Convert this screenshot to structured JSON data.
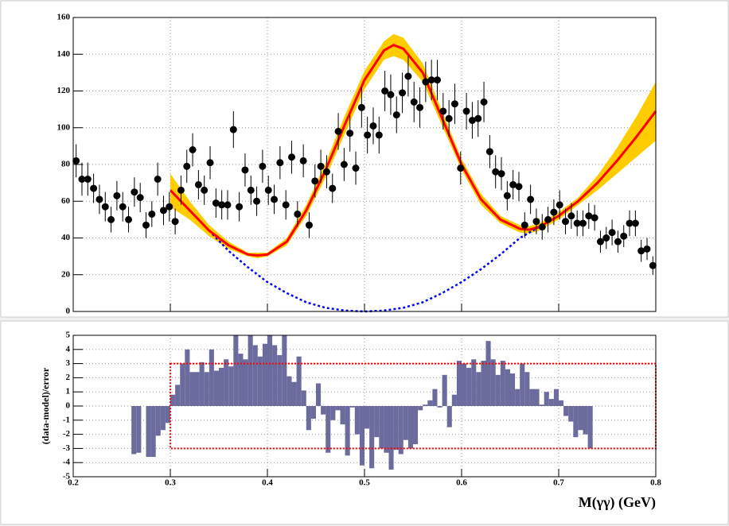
{
  "chart_data": [
    {
      "type": "scatter",
      "x": [
        0.203,
        0.209,
        0.215,
        0.221,
        0.227,
        0.233,
        0.239,
        0.245,
        0.251,
        0.257,
        0.263,
        0.269,
        0.275,
        0.281,
        0.287,
        0.293,
        0.299,
        0.305,
        0.311,
        0.317,
        0.323,
        0.329,
        0.335,
        0.341,
        0.347,
        0.353,
        0.359,
        0.365,
        0.371,
        0.377,
        0.383,
        0.389,
        0.395,
        0.401,
        0.407,
        0.413,
        0.419,
        0.425,
        0.431,
        0.437,
        0.443,
        0.449,
        0.455,
        0.461,
        0.467,
        0.473,
        0.479,
        0.485,
        0.491,
        0.497,
        0.503,
        0.509,
        0.515,
        0.521,
        0.527,
        0.533,
        0.539,
        0.545,
        0.551,
        0.557,
        0.563,
        0.569,
        0.575,
        0.581,
        0.587,
        0.593,
        0.599,
        0.605,
        0.611,
        0.617,
        0.623,
        0.629,
        0.635,
        0.641,
        0.647,
        0.653,
        0.659,
        0.665,
        0.671,
        0.677,
        0.683,
        0.689,
        0.695,
        0.701,
        0.707,
        0.713,
        0.719,
        0.725,
        0.731,
        0.737,
        0.743,
        0.749,
        0.755,
        0.761,
        0.767,
        0.773,
        0.779,
        0.785,
        0.791,
        0.797
      ],
      "values": [
        82,
        72,
        72,
        67,
        61,
        57,
        50,
        63,
        57,
        50,
        65,
        62,
        47,
        53,
        72,
        55,
        57,
        49,
        66,
        79,
        88,
        69,
        66,
        81,
        59,
        58,
        58,
        99,
        57,
        77,
        66,
        60,
        79,
        66,
        61,
        81,
        58,
        84,
        53,
        82,
        47,
        71,
        79,
        76,
        67,
        98,
        80,
        97,
        78,
        111,
        96,
        101,
        96,
        120,
        118,
        107,
        119,
        128,
        114,
        111,
        125,
        126,
        126,
        109,
        105,
        113,
        78,
        109,
        104,
        105,
        114,
        87,
        76,
        75,
        63,
        69,
        68,
        47,
        61,
        49,
        46,
        50,
        54,
        58,
        49,
        52,
        48,
        48,
        52,
        51,
        38,
        40,
        43,
        38,
        41,
        48,
        48,
        33,
        34,
        25
      ],
      "errors": [
        9,
        9,
        9,
        8,
        8,
        8,
        7,
        8,
        8,
        7,
        8,
        8,
        7,
        7,
        9,
        8,
        8,
        7,
        8,
        9,
        9,
        8,
        8,
        9,
        8,
        8,
        8,
        10,
        8,
        9,
        8,
        8,
        9,
        8,
        8,
        9,
        8,
        9,
        7,
        9,
        7,
        9,
        9,
        9,
        8,
        10,
        9,
        10,
        9,
        11,
        10,
        10,
        10,
        11,
        11,
        10,
        11,
        11,
        11,
        11,
        11,
        11,
        11,
        10,
        10,
        11,
        9,
        10,
        10,
        10,
        11,
        9,
        9,
        9,
        8,
        8,
        8,
        7,
        8,
        7,
        7,
        7,
        7,
        8,
        7,
        7,
        7,
        7,
        7,
        7,
        6,
        6,
        7,
        6,
        6,
        7,
        7,
        6,
        6,
        5
      ],
      "color": "#000000",
      "fit": {
        "color": "#ff0000",
        "band_color": "#ffcc00",
        "x": [
          0.3,
          0.32,
          0.34,
          0.36,
          0.38,
          0.39,
          0.4,
          0.42,
          0.44,
          0.46,
          0.48,
          0.5,
          0.52,
          0.53,
          0.54,
          0.56,
          0.58,
          0.6,
          0.62,
          0.64,
          0.66,
          0.67,
          0.68,
          0.7,
          0.72,
          0.74,
          0.76,
          0.78,
          0.8
        ],
        "values": [
          66,
          55,
          44,
          36,
          31,
          30.5,
          31,
          38,
          55,
          77,
          102,
          126,
          142,
          145,
          143,
          130,
          105,
          80,
          61,
          50,
          45,
          44.5,
          46,
          52,
          60,
          70,
          82,
          95,
          109
        ],
        "band_low": [
          57,
          50,
          41,
          34,
          30,
          29,
          30,
          36,
          52,
          73,
          97,
          121,
          137,
          139,
          137,
          125,
          101,
          77,
          58,
          48,
          43,
          42.5,
          44,
          50,
          58,
          66,
          75,
          84,
          93
        ],
        "band_high": [
          75,
          60,
          47,
          38,
          32,
          32,
          32,
          40,
          58,
          81,
          107,
          131,
          147,
          151,
          149,
          135,
          109,
          83,
          64,
          52,
          47,
          46.5,
          48,
          54,
          62,
          74,
          89,
          106,
          125
        ]
      },
      "background": {
        "color": "#0000ee",
        "x": [
          0.34,
          0.36,
          0.38,
          0.4,
          0.42,
          0.44,
          0.46,
          0.48,
          0.5,
          0.52,
          0.54,
          0.56,
          0.58,
          0.6,
          0.62,
          0.64,
          0.66,
          0.68,
          0.7
        ],
        "values": [
          44,
          33,
          24,
          16,
          10,
          5,
          2,
          0.5,
          0,
          0.5,
          2,
          5,
          10,
          16,
          23,
          31,
          40,
          46,
          52
        ]
      },
      "xlim": [
        0.2,
        0.8
      ],
      "xticks": [
        0.2,
        0.3,
        0.4,
        0.5,
        0.6,
        0.7,
        0.8
      ],
      "ylim": [
        0,
        160
      ],
      "yticks": [
        0,
        20,
        40,
        60,
        80,
        100,
        120,
        140,
        160
      ],
      "grid": true
    },
    {
      "type": "histogram",
      "bins": [
        0.26,
        0.265,
        0.27,
        0.275,
        0.28,
        0.285,
        0.29,
        0.295,
        0.3,
        0.305,
        0.31,
        0.315,
        0.32,
        0.325,
        0.33,
        0.335,
        0.34,
        0.345,
        0.35,
        0.355,
        0.36,
        0.365,
        0.37,
        0.375,
        0.38,
        0.385,
        0.39,
        0.395,
        0.4,
        0.405,
        0.41,
        0.415,
        0.42,
        0.425,
        0.43,
        0.435,
        0.44,
        0.445,
        0.45,
        0.455,
        0.46,
        0.465,
        0.47,
        0.475,
        0.48,
        0.485,
        0.49,
        0.495,
        0.5,
        0.505,
        0.51,
        0.515,
        0.52,
        0.525,
        0.53,
        0.535,
        0.54,
        0.545,
        0.55,
        0.555,
        0.56,
        0.565,
        0.57,
        0.575,
        0.58,
        0.585,
        0.59,
        0.595,
        0.6,
        0.605,
        0.61,
        0.615,
        0.62,
        0.625,
        0.63,
        0.635,
        0.64,
        0.645,
        0.65,
        0.655,
        0.66,
        0.665,
        0.67,
        0.675,
        0.68,
        0.685,
        0.69,
        0.695,
        0.7,
        0.705,
        0.71,
        0.715,
        0.72,
        0.725,
        0.73,
        0.735
      ],
      "values": [
        -3.4,
        -3.3,
        0,
        -3.6,
        -3.6,
        -2.1,
        -1.7,
        -1.2,
        0.8,
        1.5,
        3.0,
        4.0,
        2.4,
        2.4,
        3.1,
        2.4,
        4.0,
        2.5,
        2.7,
        3.3,
        2.8,
        5,
        3.7,
        3.3,
        5,
        4.3,
        3.5,
        4.4,
        5,
        4.3,
        3.6,
        5,
        2.1,
        1.7,
        3.5,
        1.1,
        -1.7,
        -0.9,
        1.6,
        -0.6,
        -3.3,
        -1.0,
        -0.3,
        -1.3,
        -3.5,
        -0.1,
        -2.0,
        -4.2,
        -1.6,
        -4.4,
        -2.2,
        -3.0,
        -3.3,
        -4.5,
        -3.1,
        -3.4,
        -2.4,
        -3.0,
        -2.7,
        -0.3,
        0.1,
        0.4,
        1.2,
        -0.1,
        2.2,
        -1.5,
        0.8,
        3.2,
        3.0,
        2.7,
        3.3,
        2.4,
        3.2,
        4.6,
        3.3,
        2.2,
        3.2,
        2.6,
        2.3,
        1.2,
        3.0,
        2.4,
        1.2,
        1.2,
        0.1,
        1.0,
        0.5,
        1.2,
        0.4,
        -0.7,
        -1.1,
        -2.2,
        -1.7,
        -2.0,
        -3.0
      ],
      "color": "#6b6b9e",
      "box": {
        "color": "#ff0000",
        "xlim": [
          0.3,
          0.8
        ],
        "ylim": [
          -3,
          3
        ]
      },
      "xlabel": "M(γγ) (GeV)",
      "ylabel": "(data-model)/error",
      "xlim": [
        0.2,
        0.8
      ],
      "xticks": [
        0.2,
        0.3,
        0.4,
        0.5,
        0.6,
        0.7,
        0.8
      ],
      "ylim": [
        -5,
        5
      ],
      "yticks": [
        -5,
        -4,
        -3,
        -2,
        -1,
        0,
        1,
        2,
        3,
        4,
        5
      ],
      "grid": true
    }
  ]
}
